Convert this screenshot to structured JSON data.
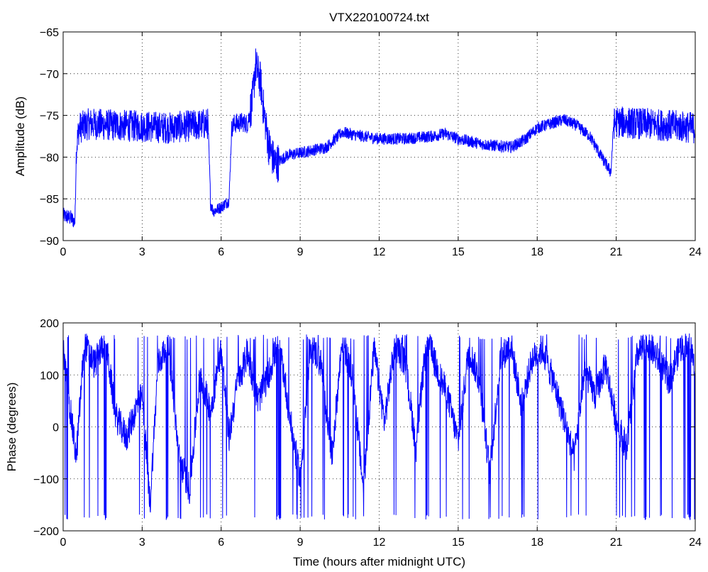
{
  "chart_data": [
    {
      "type": "line",
      "title": "VTX220100724.txt",
      "xlabel": "",
      "ylabel": "Amplitude (dB)",
      "xlim": [
        0,
        24
      ],
      "ylim": [
        -90,
        -65
      ],
      "xticks": [
        0,
        3,
        6,
        9,
        12,
        15,
        18,
        21,
        24
      ],
      "yticks": [
        -90,
        -85,
        -80,
        -75,
        -70,
        -65
      ],
      "xtick_labels": [
        "0",
        "3",
        "6",
        "9",
        "12",
        "15",
        "18",
        "21",
        "24"
      ],
      "ytick_labels": [
        "−90",
        "−85",
        "−80",
        "−75",
        "−70",
        "−65"
      ],
      "grid": true,
      "line_color": "#0000ff",
      "series": [
        {
          "x": [
            0,
            0.3,
            0.45,
            0.5,
            0.6,
            1,
            2,
            3,
            4,
            5,
            5.5,
            5.6,
            5.7,
            6,
            6.3,
            6.4,
            6.5,
            6.8,
            7.0,
            7.2,
            7.3,
            7.5,
            7.6,
            7.8,
            7.9,
            8.0,
            8.1,
            8.2,
            8.5,
            9,
            10,
            10.6,
            11,
            12,
            13,
            14,
            14.5,
            15,
            16,
            17,
            17.5,
            18,
            18.5,
            19,
            19.5,
            20,
            20.5,
            20.8,
            20.9,
            21,
            22,
            23,
            24
          ],
          "y": [
            -87,
            -87.3,
            -87.8,
            -79,
            -76.5,
            -76,
            -76.2,
            -76.3,
            -76.5,
            -76.2,
            -76,
            -85.5,
            -86.5,
            -86,
            -85.2,
            -76.5,
            -76,
            -75.8,
            -76,
            -73,
            -69,
            -71,
            -74,
            -78.5,
            -79.5,
            -80.5,
            -80.8,
            -80.5,
            -79.8,
            -79.5,
            -78.8,
            -77,
            -77.3,
            -77.8,
            -77.8,
            -77.5,
            -77.2,
            -77.8,
            -78.5,
            -78.8,
            -78,
            -76.5,
            -76,
            -75.5,
            -76.2,
            -77.5,
            -80.3,
            -81.8,
            -76,
            -75.8,
            -76,
            -76.2,
            -76.5
          ]
        }
      ]
    },
    {
      "type": "line",
      "title": "",
      "xlabel": "Time (hours after midnight UTC)",
      "ylabel": "Phase (degrees)",
      "xlim": [
        0,
        24
      ],
      "ylim": [
        -200,
        200
      ],
      "xticks": [
        0,
        3,
        6,
        9,
        12,
        15,
        18,
        21,
        24
      ],
      "yticks": [
        -200,
        -100,
        0,
        100,
        200
      ],
      "xtick_labels": [
        "0",
        "3",
        "6",
        "9",
        "12",
        "15",
        "18",
        "21",
        "24"
      ],
      "ytick_labels": [
        "−200",
        "−100",
        "0",
        "100",
        "200"
      ],
      "grid": true,
      "line_color": "#0000ff",
      "series": [
        {
          "x": [
            0,
            0.3,
            0.5,
            0.8,
            1.2,
            1.6,
            2.0,
            2.4,
            2.8,
            3.0,
            3.3,
            3.6,
            4.0,
            4.4,
            4.8,
            5.2,
            5.6,
            6.0,
            6.3,
            6.6,
            7.0,
            7.4,
            7.8,
            8.2,
            8.6,
            9.0,
            9.4,
            9.8,
            10.2,
            10.6,
            11.0,
            11.4,
            11.8,
            12.2,
            12.6,
            13.0,
            13.4,
            13.8,
            14.2,
            14.6,
            15.0,
            15.4,
            15.8,
            16.2,
            16.6,
            17.0,
            17.4,
            17.8,
            18.2,
            18.6,
            19.0,
            19.4,
            19.8,
            20.2,
            20.6,
            21.0,
            21.4,
            21.8,
            22.2,
            22.6,
            23.0,
            23.4,
            23.8,
            24
          ],
          "y": [
            150,
            20,
            -60,
            160,
            120,
            170,
            20,
            -20,
            40,
            60,
            -150,
            120,
            160,
            -60,
            -120,
            100,
            30,
            150,
            -20,
            80,
            140,
            50,
            100,
            170,
            20,
            -100,
            160,
            120,
            -60,
            170,
            90,
            -120,
            150,
            10,
            160,
            120,
            -40,
            170,
            110,
            60,
            -30,
            150,
            90,
            -90,
            130,
            160,
            40,
            130,
            150,
            90,
            20,
            -60,
            110,
            60,
            120,
            10,
            -40,
            140,
            160,
            130,
            90,
            150,
            170,
            100
          ]
        }
      ]
    }
  ]
}
